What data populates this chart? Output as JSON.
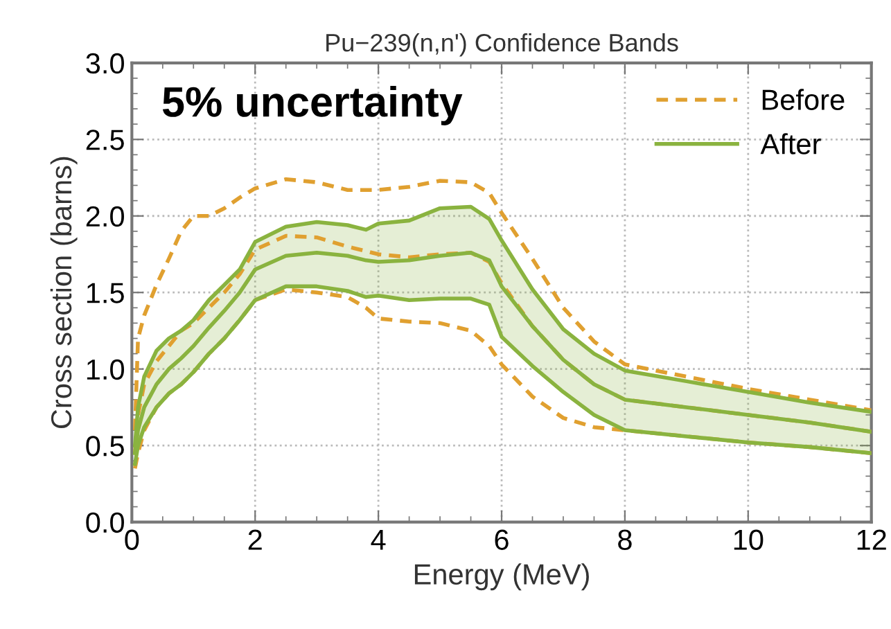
{
  "chart_data": {
    "type": "line",
    "title": "Pu−239(n,n') Confidence Bands",
    "xlabel": "Energy (MeV)",
    "ylabel": "Cross section (barns)",
    "annotations": [
      "5% uncertainty"
    ],
    "x": [
      0.05,
      0.1,
      0.2,
      0.4,
      0.6,
      0.8,
      1,
      1.25,
      1.5,
      1.75,
      2,
      2.5,
      3,
      3.5,
      3.8,
      4,
      4.5,
      5,
      5.5,
      5.8,
      6,
      6.5,
      7,
      7.5,
      8,
      9,
      10,
      11,
      12
    ],
    "series": [
      {
        "color": "#e0a030",
        "line_style": "dashed",
        "values": [
          0.6,
          1.2,
          1.35,
          1.55,
          1.72,
          1.9,
          2.0,
          2.0,
          2.05,
          2.12,
          2.18,
          2.24,
          2.22,
          2.17,
          2.17,
          2.17,
          2.19,
          2.23,
          2.22,
          2.15,
          2.02,
          1.72,
          1.4,
          1.18,
          1.03,
          0.95,
          0.87,
          0.8,
          0.73
        ]
      },
      {
        "name": "Before",
        "color": "#e0a030",
        "line_style": "dashed",
        "values": [
          0.45,
          0.7,
          0.9,
          1.05,
          1.15,
          1.25,
          1.3,
          1.4,
          1.5,
          1.62,
          1.78,
          1.87,
          1.86,
          1.8,
          1.77,
          1.75,
          1.73,
          1.75,
          1.76,
          1.7,
          1.56,
          1.28,
          1.06,
          0.9,
          0.8,
          0.75,
          0.7,
          0.65,
          0.59
        ]
      },
      {
        "color": "#e0a030",
        "line_style": "dashed",
        "values": [
          0.35,
          0.45,
          0.6,
          0.75,
          0.84,
          0.9,
          0.98,
          1.1,
          1.2,
          1.32,
          1.45,
          1.52,
          1.5,
          1.47,
          1.4,
          1.33,
          1.31,
          1.3,
          1.25,
          1.15,
          1.03,
          0.82,
          0.68,
          0.62,
          0.6,
          0.56,
          0.52,
          0.49,
          0.45
        ]
      },
      {
        "color": "#8ab33f",
        "line_style": "solid",
        "values": [
          0.5,
          0.75,
          0.95,
          1.12,
          1.2,
          1.25,
          1.32,
          1.45,
          1.55,
          1.65,
          1.83,
          1.93,
          1.96,
          1.94,
          1.91,
          1.95,
          1.97,
          2.05,
          2.06,
          1.98,
          1.84,
          1.52,
          1.26,
          1.1,
          0.99,
          0.92,
          0.85,
          0.78,
          0.72
        ]
      },
      {
        "color": "#8ab33f",
        "line_style": "solid",
        "values": [
          0.38,
          0.5,
          0.62,
          0.75,
          0.84,
          0.9,
          0.98,
          1.1,
          1.2,
          1.32,
          1.45,
          1.54,
          1.54,
          1.51,
          1.47,
          1.48,
          1.45,
          1.46,
          1.46,
          1.42,
          1.21,
          1.02,
          0.85,
          0.7,
          0.6,
          0.56,
          0.52,
          0.49,
          0.45
        ]
      },
      {
        "name": "After",
        "color": "#8ab33f",
        "line_style": "solid",
        "values": [
          0.45,
          0.6,
          0.75,
          0.9,
          1.0,
          1.07,
          1.15,
          1.27,
          1.38,
          1.5,
          1.65,
          1.74,
          1.76,
          1.74,
          1.71,
          1.7,
          1.71,
          1.74,
          1.76,
          1.71,
          1.54,
          1.28,
          1.06,
          0.9,
          0.8,
          0.75,
          0.7,
          0.65,
          0.59
        ],
        "upper": [
          0.5,
          0.75,
          0.95,
          1.12,
          1.2,
          1.25,
          1.32,
          1.45,
          1.55,
          1.65,
          1.83,
          1.93,
          1.96,
          1.94,
          1.91,
          1.95,
          1.97,
          2.05,
          2.06,
          1.98,
          1.84,
          1.52,
          1.26,
          1.1,
          0.99,
          0.92,
          0.85,
          0.78,
          0.72
        ],
        "lower": [
          0.38,
          0.5,
          0.62,
          0.75,
          0.84,
          0.9,
          0.98,
          1.1,
          1.2,
          1.32,
          1.45,
          1.54,
          1.54,
          1.51,
          1.47,
          1.48,
          1.45,
          1.46,
          1.46,
          1.42,
          1.21,
          1.02,
          0.85,
          0.7,
          0.6,
          0.56,
          0.52,
          0.49,
          0.45
        ]
      }
    ],
    "xlim": [
      0,
      12
    ],
    "xticks": [
      0,
      2,
      4,
      6,
      8,
      10,
      12
    ],
    "ylim": [
      0,
      3
    ],
    "yticks": [
      {
        "value": 0,
        "label": "0.0"
      },
      {
        "value": 0.5,
        "label": "0.5"
      },
      {
        "value": 1,
        "label": "1.0"
      },
      {
        "value": 1.5,
        "label": "1.5"
      },
      {
        "value": 2,
        "label": "2.0"
      },
      {
        "value": 2.5,
        "label": "2.5"
      },
      {
        "value": 3,
        "label": "3.0"
      }
    ],
    "grid": true,
    "legend": "top right",
    "marker": "none"
  }
}
